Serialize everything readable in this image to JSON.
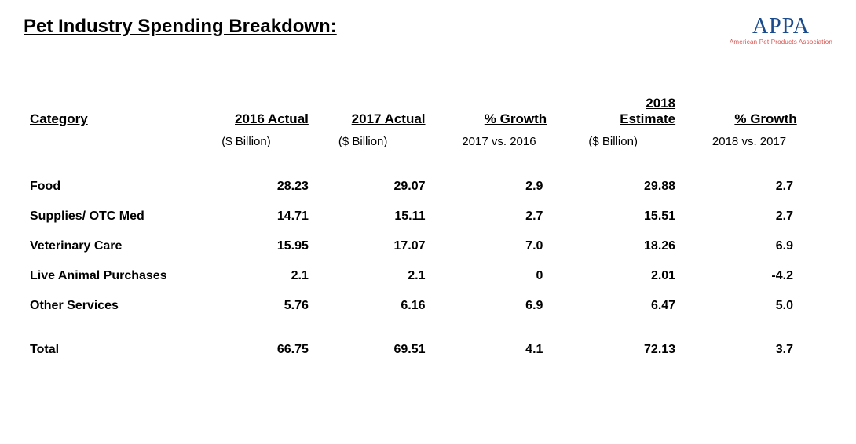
{
  "title": "Pet Industry Spending Breakdown:",
  "logo": {
    "main": "APPA",
    "sub": "American Pet Products Association"
  },
  "table": {
    "columns": [
      {
        "label": "Category",
        "sublabel": ""
      },
      {
        "label": "2016 Actual",
        "sublabel": "($ Billion)"
      },
      {
        "label": "2017 Actual",
        "sublabel": "($ Billion)"
      },
      {
        "label": "% Growth",
        "sublabel": "2017 vs. 2016"
      },
      {
        "label": "2018 Estimate",
        "sublabel": "($ Billion)"
      },
      {
        "label": "% Growth",
        "sublabel": "2018 vs. 2017"
      }
    ],
    "rows": [
      {
        "cat": "Food",
        "y2016": "28.23",
        "y2017": "29.07",
        "g1": "2.9",
        "y2018": "29.88",
        "g2": "2.7"
      },
      {
        "cat": "Supplies/ OTC Med",
        "y2016": "14.71",
        "y2017": "15.11",
        "g1": "2.7",
        "y2018": "15.51",
        "g2": "2.7"
      },
      {
        "cat": "Veterinary Care",
        "y2016": "15.95",
        "y2017": "17.07",
        "g1": "7.0",
        "y2018": "18.26",
        "g2": "6.9"
      },
      {
        "cat": "Live Animal Purchases",
        "y2016": "2.1",
        "y2017": "2.1",
        "g1": "0",
        "y2018": "2.01",
        "g2": "-4.2"
      },
      {
        "cat": "Other Services",
        "y2016": "5.76",
        "y2017": "6.16",
        "g1": "6.9",
        "y2018": "6.47",
        "g2": "5.0"
      }
    ],
    "total": {
      "cat": "Total",
      "y2016": "66.75",
      "y2017": "69.51",
      "g1": "4.1",
      "y2018": "72.13",
      "g2": "3.7"
    }
  },
  "styling": {
    "title_fontsize": 24,
    "header_fontsize": 17,
    "body_fontsize": 16,
    "text_color": "#000000",
    "logo_color": "#1a4b8c",
    "logo_sub_color": "#d9534f",
    "background": "#ffffff"
  }
}
